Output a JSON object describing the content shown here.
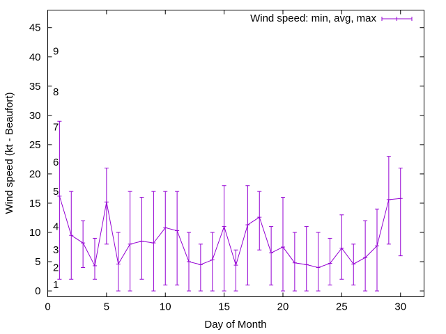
{
  "chart_data": {
    "type": "line",
    "title": "",
    "xlabel": "Day of Month",
    "ylabel": "Wind speed (kt - Beaufort)",
    "xlim": [
      0,
      32
    ],
    "ylim": [
      -1,
      48
    ],
    "x_ticks": [
      0,
      5,
      10,
      15,
      20,
      25,
      30
    ],
    "y_ticks": [
      0,
      5,
      10,
      15,
      20,
      25,
      30,
      35,
      40,
      45
    ],
    "grid": false,
    "legend_position": "top-right",
    "series": [
      {
        "name": "Wind speed: min, avg, max",
        "color": "#9400d3",
        "error_bars": true,
        "points": [
          {
            "x": 1,
            "avg": 16.2,
            "min": 2,
            "max": 29
          },
          {
            "x": 2,
            "avg": 9.5,
            "min": 2,
            "max": 17
          },
          {
            "x": 3,
            "avg": 8.2,
            "min": 4,
            "max": 12
          },
          {
            "x": 4,
            "avg": 4.3,
            "min": 2,
            "max": 9
          },
          {
            "x": 5,
            "avg": 15.2,
            "min": 8,
            "max": 21
          },
          {
            "x": 6,
            "avg": 4.6,
            "min": 0,
            "max": 10
          },
          {
            "x": 7,
            "avg": 8,
            "min": 0,
            "max": 17
          },
          {
            "x": 8,
            "avg": 8.5,
            "min": 2,
            "max": 16
          },
          {
            "x": 9,
            "avg": 8.2,
            "min": 0,
            "max": 17
          },
          {
            "x": 10,
            "avg": 10.8,
            "min": 1,
            "max": 17
          },
          {
            "x": 11,
            "avg": 10.3,
            "min": 1,
            "max": 17
          },
          {
            "x": 12,
            "avg": 5,
            "min": 0,
            "max": 10
          },
          {
            "x": 13,
            "avg": 4.5,
            "min": 0,
            "max": 8
          },
          {
            "x": 14,
            "avg": 5.3,
            "min": 0,
            "max": 10
          },
          {
            "x": 15,
            "avg": 11,
            "min": 0,
            "max": 18
          },
          {
            "x": 16,
            "avg": 4.4,
            "min": 0,
            "max": 7
          },
          {
            "x": 17,
            "avg": 11.3,
            "min": 1,
            "max": 18
          },
          {
            "x": 18,
            "avg": 12.6,
            "min": 7,
            "max": 17
          },
          {
            "x": 19,
            "avg": 6.5,
            "min": 1,
            "max": 11
          },
          {
            "x": 20,
            "avg": 7.5,
            "min": 0,
            "max": 16
          },
          {
            "x": 21,
            "avg": 4.8,
            "min": 0,
            "max": 10
          },
          {
            "x": 22,
            "avg": 4.5,
            "min": 0,
            "max": 11
          },
          {
            "x": 23,
            "avg": 4,
            "min": 0,
            "max": 10
          },
          {
            "x": 24,
            "avg": 4.7,
            "min": 1,
            "max": 9
          },
          {
            "x": 25,
            "avg": 7.3,
            "min": 2,
            "max": 13
          },
          {
            "x": 26,
            "avg": 4.6,
            "min": 1,
            "max": 8
          },
          {
            "x": 27,
            "avg": 5.7,
            "min": 0,
            "max": 12
          },
          {
            "x": 28,
            "avg": 7.7,
            "min": 0,
            "max": 14
          },
          {
            "x": 29,
            "avg": 15.6,
            "min": 8,
            "max": 23
          },
          {
            "x": 30,
            "avg": 15.8,
            "min": 6,
            "max": 21
          }
        ]
      }
    ],
    "beaufort_labels": [
      {
        "label": "1",
        "y": 1.1
      },
      {
        "label": "2",
        "y": 4
      },
      {
        "label": "3",
        "y": 7
      },
      {
        "label": "4",
        "y": 11
      },
      {
        "label": "5",
        "y": 17
      },
      {
        "label": "6",
        "y": 22
      },
      {
        "label": "7",
        "y": 28
      },
      {
        "label": "8",
        "y": 34
      },
      {
        "label": "9",
        "y": 41
      }
    ]
  }
}
